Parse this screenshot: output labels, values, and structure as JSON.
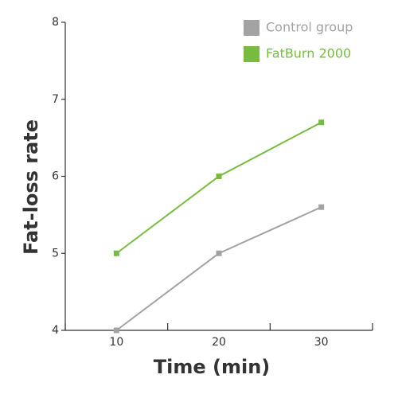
{
  "chart_data": {
    "type": "line",
    "xlabel": "Time (min)",
    "ylabel": "Fat-loss rate",
    "categories": [
      "10",
      "20",
      "30"
    ],
    "series": [
      {
        "name": "Control group",
        "color": "#a3a3a3",
        "values": [
          4,
          5,
          5.6
        ]
      },
      {
        "name": "FatBurn 2000",
        "color": "#77bb41",
        "values": [
          5,
          6,
          6.7
        ]
      }
    ],
    "ylim": [
      4,
      8
    ],
    "yticks": [
      4,
      5,
      6,
      7,
      8
    ],
    "legend": "upper right"
  }
}
